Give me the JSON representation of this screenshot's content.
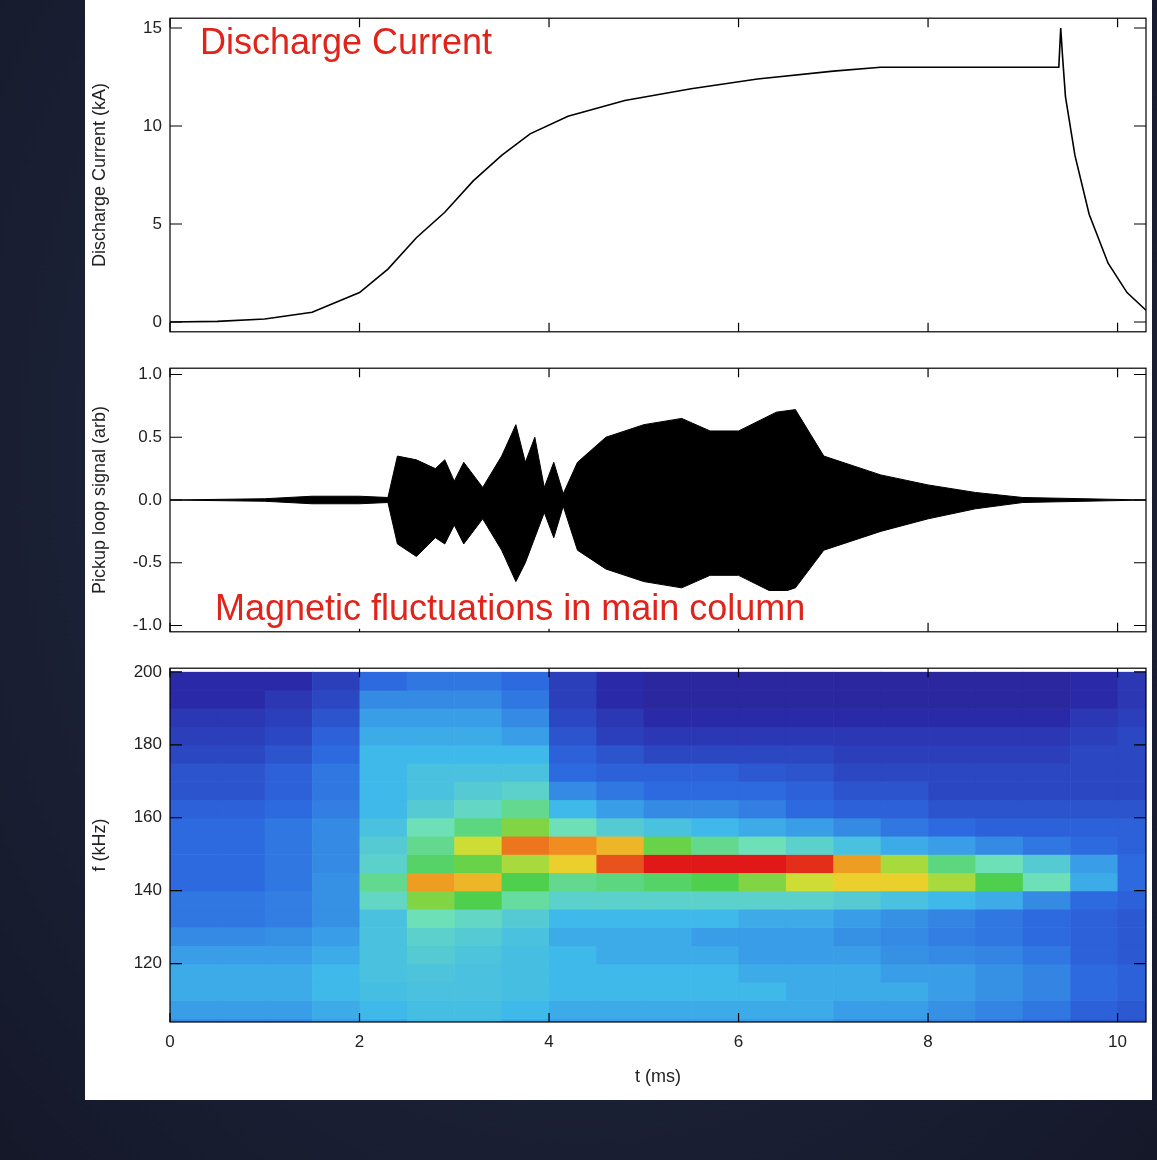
{
  "chart_data": [
    {
      "type": "line",
      "annotation": "Discharge Current",
      "ylabel": "Discharge Current (kA)",
      "x": [
        0,
        0.5,
        1,
        1.5,
        2,
        2.3,
        2.6,
        2.9,
        3.2,
        3.5,
        3.8,
        4.2,
        4.8,
        5.5,
        6.2,
        7,
        7.5,
        8.5,
        9.38,
        9.4,
        9.42,
        9.45,
        9.55,
        9.7,
        9.9,
        10.1,
        10.3
      ],
      "values": [
        0,
        0.03,
        0.15,
        0.5,
        1.5,
        2.7,
        4.3,
        5.6,
        7.2,
        8.5,
        9.6,
        10.5,
        11.3,
        11.9,
        12.4,
        12.8,
        13,
        13,
        13,
        15,
        13.5,
        11.5,
        8.5,
        5.5,
        3,
        1.5,
        0.6
      ],
      "color": "#000000",
      "xlim": [
        0,
        10.3
      ],
      "xticks": [
        0,
        2,
        4,
        6,
        8,
        10
      ],
      "ylim": [
        -0.5,
        15.5
      ],
      "yticks": [
        0,
        5,
        10,
        15
      ],
      "grid": false,
      "tick_labels": "y"
    },
    {
      "type": "area",
      "annotation": "Magnetic fluctuations in main column",
      "ylabel": "Pickup loop signal (arb)",
      "x": [
        0,
        1.0,
        1.5,
        2.0,
        2.3,
        2.4,
        2.6,
        2.8,
        2.9,
        3.0,
        3.1,
        3.3,
        3.5,
        3.65,
        3.75,
        3.85,
        3.95,
        4.05,
        4.15,
        4.3,
        4.6,
        5.0,
        5.4,
        5.7,
        6.0,
        6.4,
        6.6,
        6.9,
        7.5,
        8.0,
        8.5,
        9.0,
        10.3
      ],
      "upper": [
        0,
        0.01,
        0.03,
        0.03,
        0.02,
        0.35,
        0.32,
        0.25,
        0.32,
        0.15,
        0.3,
        0.1,
        0.35,
        0.6,
        0.3,
        0.5,
        0.1,
        0.3,
        0.05,
        0.3,
        0.5,
        0.6,
        0.65,
        0.55,
        0.55,
        0.7,
        0.72,
        0.35,
        0.2,
        0.12,
        0.06,
        0.02,
        0
      ],
      "lower": [
        0,
        -0.01,
        -0.03,
        -0.03,
        -0.02,
        -0.35,
        -0.45,
        -0.3,
        -0.35,
        -0.2,
        -0.35,
        -0.15,
        -0.4,
        -0.65,
        -0.5,
        -0.3,
        -0.1,
        -0.3,
        -0.05,
        -0.4,
        -0.55,
        -0.65,
        -0.7,
        -0.6,
        -0.6,
        -0.75,
        -0.7,
        -0.4,
        -0.25,
        -0.15,
        -0.07,
        -0.02,
        0
      ],
      "color": "#000000",
      "xlim": [
        0,
        10.3
      ],
      "xticks": [
        0,
        2,
        4,
        6,
        8,
        10
      ],
      "ylim": [
        -1.05,
        1.05
      ],
      "yticks": [
        {
          "value": -1,
          "label": "-1.0"
        },
        -0.5,
        {
          "value": 0,
          "label": "0.0"
        },
        0.5,
        {
          "value": 1,
          "label": "1.0"
        }
      ],
      "grid": false,
      "tick_labels": "y"
    },
    {
      "type": "heatmap",
      "xlabel": "t (ms)",
      "ylabel": "f (kHz)",
      "x_bins": [
        0,
        0.5,
        1,
        1.5,
        2,
        2.5,
        3,
        3.5,
        4,
        4.5,
        5,
        5.5,
        6,
        6.5,
        7,
        7.5,
        8,
        8.5,
        9,
        9.5,
        10,
        10.5
      ],
      "y_bins": [
        100,
        105,
        110,
        115,
        120,
        125,
        130,
        135,
        140,
        145,
        150,
        155,
        160,
        165,
        170,
        175,
        180,
        185,
        190,
        195,
        200
      ],
      "cells": [
        [
          0.35,
          0.35,
          0.35,
          0.38,
          0.4,
          0.42,
          0.42,
          0.4,
          0.38,
          0.38,
          0.38,
          0.38,
          0.38,
          0.38,
          0.36,
          0.36,
          0.34,
          0.32,
          0.3,
          0.26,
          0.24
        ],
        [
          0.38,
          0.38,
          0.38,
          0.4,
          0.42,
          0.44,
          0.44,
          0.42,
          0.4,
          0.4,
          0.4,
          0.4,
          0.4,
          0.4,
          0.38,
          0.38,
          0.36,
          0.34,
          0.32,
          0.28,
          0.26
        ],
        [
          0.4,
          0.4,
          0.4,
          0.42,
          0.44,
          0.45,
          0.45,
          0.44,
          0.42,
          0.42,
          0.42,
          0.42,
          0.42,
          0.4,
          0.4,
          0.4,
          0.38,
          0.36,
          0.34,
          0.3,
          0.28
        ],
        [
          0.4,
          0.4,
          0.4,
          0.42,
          0.45,
          0.46,
          0.45,
          0.44,
          0.42,
          0.42,
          0.42,
          0.42,
          0.4,
          0.4,
          0.4,
          0.38,
          0.38,
          0.36,
          0.34,
          0.3,
          0.28
        ],
        [
          0.38,
          0.38,
          0.38,
          0.4,
          0.45,
          0.48,
          0.46,
          0.44,
          0.42,
          0.4,
          0.4,
          0.4,
          0.38,
          0.38,
          0.38,
          0.36,
          0.35,
          0.34,
          0.32,
          0.28,
          0.26
        ],
        [
          0.35,
          0.35,
          0.36,
          0.38,
          0.45,
          0.5,
          0.48,
          0.45,
          0.4,
          0.4,
          0.4,
          0.38,
          0.38,
          0.38,
          0.36,
          0.35,
          0.33,
          0.32,
          0.3,
          0.28,
          0.26
        ],
        [
          0.32,
          0.32,
          0.33,
          0.36,
          0.45,
          0.55,
          0.52,
          0.48,
          0.42,
          0.42,
          0.42,
          0.42,
          0.4,
          0.4,
          0.38,
          0.36,
          0.34,
          0.32,
          0.3,
          0.28,
          0.26
        ],
        [
          0.32,
          0.32,
          0.33,
          0.36,
          0.52,
          0.72,
          0.68,
          0.58,
          0.5,
          0.5,
          0.5,
          0.5,
          0.5,
          0.5,
          0.48,
          0.45,
          0.42,
          0.4,
          0.35,
          0.3,
          0.28
        ],
        [
          0.3,
          0.3,
          0.32,
          0.36,
          0.6,
          0.88,
          0.85,
          0.68,
          0.6,
          0.62,
          0.65,
          0.68,
          0.72,
          0.78,
          0.82,
          0.82,
          0.75,
          0.68,
          0.55,
          0.4,
          0.3
        ],
        [
          0.3,
          0.3,
          0.32,
          0.35,
          0.5,
          0.65,
          0.7,
          0.75,
          0.82,
          0.95,
          1.0,
          1.0,
          1.0,
          0.98,
          0.88,
          0.75,
          0.62,
          0.55,
          0.48,
          0.38,
          0.3
        ],
        [
          0.3,
          0.3,
          0.32,
          0.35,
          0.48,
          0.6,
          0.78,
          0.92,
          0.9,
          0.85,
          0.7,
          0.6,
          0.55,
          0.5,
          0.45,
          0.4,
          0.38,
          0.35,
          0.32,
          0.3,
          0.28
        ],
        [
          0.3,
          0.3,
          0.32,
          0.35,
          0.45,
          0.55,
          0.62,
          0.72,
          0.55,
          0.48,
          0.45,
          0.42,
          0.4,
          0.38,
          0.35,
          0.32,
          0.3,
          0.28,
          0.28,
          0.28,
          0.28
        ],
        [
          0.28,
          0.28,
          0.3,
          0.33,
          0.42,
          0.48,
          0.52,
          0.6,
          0.42,
          0.38,
          0.35,
          0.35,
          0.33,
          0.3,
          0.28,
          0.28,
          0.25,
          0.25,
          0.25,
          0.25,
          0.25
        ],
        [
          0.25,
          0.25,
          0.28,
          0.32,
          0.42,
          0.45,
          0.48,
          0.5,
          0.35,
          0.32,
          0.3,
          0.3,
          0.3,
          0.28,
          0.25,
          0.25,
          0.22,
          0.22,
          0.22,
          0.22,
          0.22
        ],
        [
          0.25,
          0.25,
          0.28,
          0.32,
          0.42,
          0.45,
          0.45,
          0.45,
          0.3,
          0.28,
          0.28,
          0.28,
          0.26,
          0.25,
          0.22,
          0.22,
          0.22,
          0.22,
          0.22,
          0.22,
          0.22
        ],
        [
          0.22,
          0.22,
          0.25,
          0.3,
          0.42,
          0.42,
          0.42,
          0.42,
          0.28,
          0.25,
          0.22,
          0.22,
          0.22,
          0.22,
          0.2,
          0.2,
          0.2,
          0.2,
          0.2,
          0.22,
          0.22
        ],
        [
          0.2,
          0.2,
          0.22,
          0.28,
          0.4,
          0.4,
          0.4,
          0.38,
          0.25,
          0.2,
          0.18,
          0.18,
          0.18,
          0.18,
          0.18,
          0.18,
          0.18,
          0.18,
          0.18,
          0.2,
          0.22
        ],
        [
          0.18,
          0.18,
          0.2,
          0.25,
          0.38,
          0.38,
          0.38,
          0.35,
          0.22,
          0.18,
          0.15,
          0.15,
          0.15,
          0.15,
          0.15,
          0.15,
          0.15,
          0.15,
          0.15,
          0.18,
          0.2
        ],
        [
          0.15,
          0.15,
          0.18,
          0.22,
          0.35,
          0.35,
          0.35,
          0.32,
          0.2,
          0.15,
          0.12,
          0.12,
          0.12,
          0.12,
          0.12,
          0.12,
          0.12,
          0.12,
          0.12,
          0.15,
          0.18
        ],
        [
          0.15,
          0.15,
          0.15,
          0.2,
          0.3,
          0.32,
          0.32,
          0.3,
          0.2,
          0.15,
          0.12,
          0.12,
          0.12,
          0.12,
          0.12,
          0.12,
          0.12,
          0.12,
          0.12,
          0.15,
          0.18
        ]
      ],
      "xlim": [
        0,
        10.3
      ],
      "xticks": [
        0,
        2,
        4,
        6,
        8,
        10
      ],
      "ylim": [
        104,
        201
      ],
      "yticks": [
        120,
        140,
        160,
        180,
        200
      ],
      "grid": false
    }
  ]
}
